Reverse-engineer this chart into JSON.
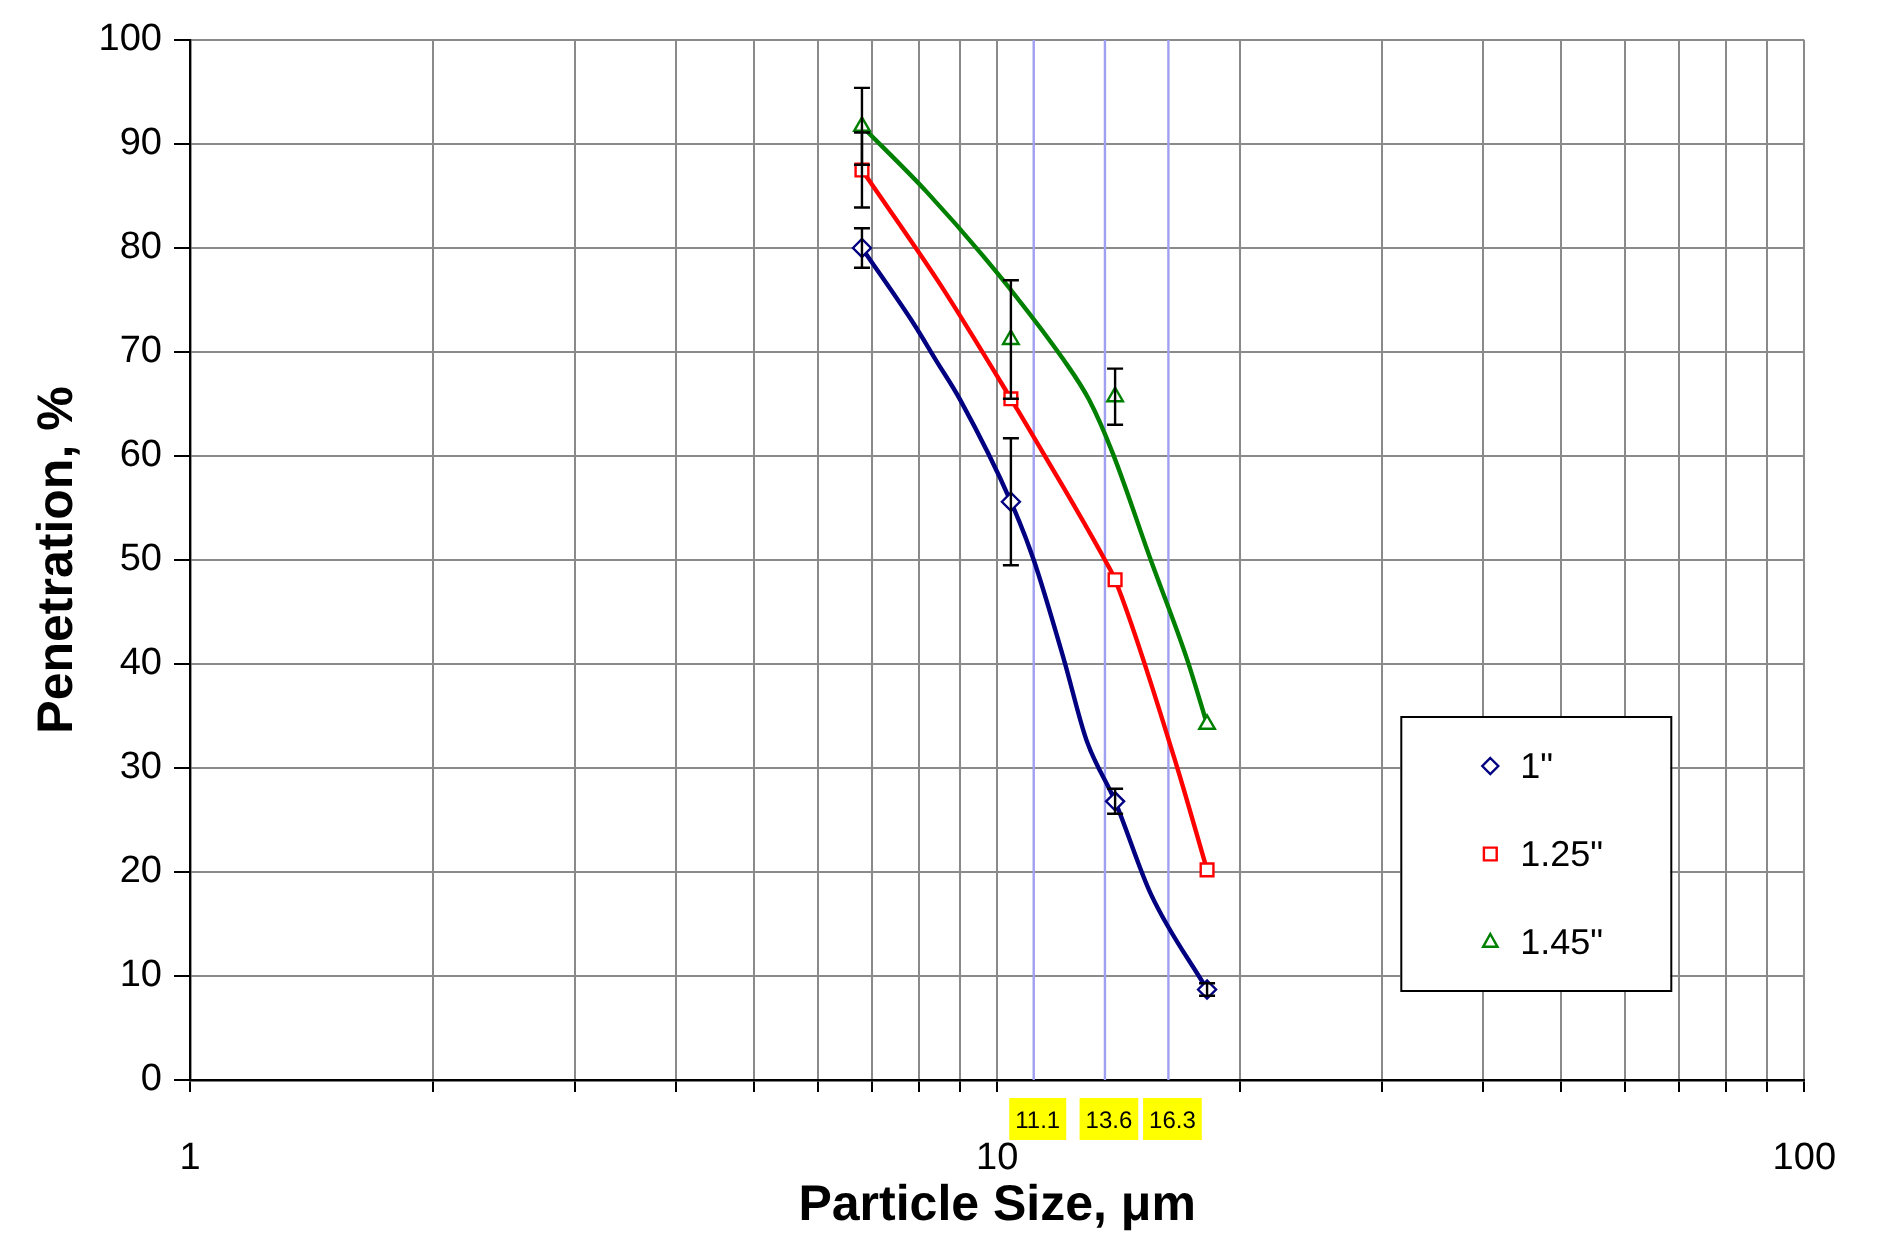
{
  "chart_data": {
    "type": "scatter",
    "xlabel": "Particle Size, μm",
    "ylabel": "Penetration, %",
    "log": "x",
    "xlim": [
      1,
      100
    ],
    "xticks": [
      1,
      {
        "value": 2,
        "label": null
      },
      {
        "value": 3,
        "label": null
      },
      {
        "value": 4,
        "label": null
      },
      {
        "value": 5,
        "label": null
      },
      {
        "value": 6,
        "label": null
      },
      {
        "value": 7,
        "label": null
      },
      {
        "value": 8,
        "label": null
      },
      {
        "value": 9,
        "label": null
      },
      10,
      {
        "value": 20,
        "label": null
      },
      {
        "value": 30,
        "label": null
      },
      {
        "value": 40,
        "label": null
      },
      {
        "value": 50,
        "label": null
      },
      {
        "value": 60,
        "label": null
      },
      {
        "value": 70,
        "label": null
      },
      {
        "value": 80,
        "label": null
      },
      {
        "value": 90,
        "label": null
      },
      100
    ],
    "ylim": [
      0,
      100
    ],
    "yticks": [
      0,
      10,
      20,
      30,
      40,
      50,
      60,
      70,
      80,
      90,
      100
    ],
    "grid": true,
    "legend": "bottom right",
    "x": [
      6.8,
      10.4,
      14.0,
      18.2
    ],
    "series": [
      {
        "name": "1\"",
        "color": "#000080",
        "marker": "diamond",
        "values": [
          80,
          55.6,
          26.8,
          8.7
        ],
        "errors": [
          1.9,
          6.1,
          1.2,
          0.6
        ]
      },
      {
        "name": "1.25\"",
        "color": "#ff0000",
        "marker": "square",
        "values": [
          87.5,
          65.5,
          48.1,
          20.2
        ],
        "errors": [
          3.6,
          null,
          null,
          null
        ]
      },
      {
        "name": "1.45\"",
        "color": "#008000",
        "marker": "triangle",
        "values": [
          91.7,
          71.2,
          65.7,
          34.2
        ],
        "errors": [
          3.7,
          5.7,
          2.7,
          null
        ]
      },
      {
        "type": "line",
        "color": "#000080",
        "marker": "none",
        "x": [
          6.8,
          7.9,
          8.4,
          9.0,
          10.4,
          11.1,
          12.1,
          12.9,
          14.0,
          15.5,
          18.2
        ],
        "values": [
          80,
          72.6,
          69.2,
          65.4,
          55.6,
          50,
          40.4,
          32.7,
          26.8,
          17.9,
          8.7
        ]
      },
      {
        "type": "line",
        "color": "#ff0000",
        "marker": "none",
        "x": [
          6.8,
          8.5,
          10.4,
          11.4,
          13.6,
          14.0,
          16.6,
          18.2
        ],
        "values": [
          87.5,
          76.5,
          65.5,
          60.3,
          50,
          48.1,
          30.8,
          20.2
        ]
      },
      {
        "type": "line",
        "color": "#008000",
        "marker": "none",
        "x": [
          6.8,
          8.2,
          10,
          12.1,
          13,
          13.9,
          15.5,
          17.2,
          18.2
        ],
        "values": [
          91.7,
          85.3,
          77.6,
          69.2,
          65.4,
          60.3,
          50,
          40.4,
          34.2
        ]
      }
    ],
    "ref_lines": [
      {
        "axis": "x",
        "value": 11.1,
        "label": "11.1",
        "color": "#a0a0f0"
      },
      {
        "axis": "x",
        "value": 13.6,
        "label": "13.6",
        "color": "#a0a0f0"
      },
      {
        "axis": "x",
        "value": 16.3,
        "label": "16.3",
        "color": "#a0a0f0"
      }
    ]
  }
}
